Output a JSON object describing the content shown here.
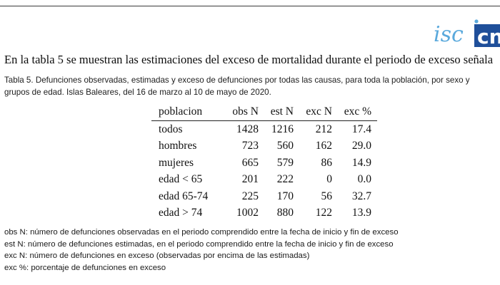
{
  "logo": {
    "text_a": "isc",
    "text_b": "cn",
    "colors": {
      "primary": "#1f4f9a",
      "light": "#5aa9dc"
    }
  },
  "intro_text": "En la tabla 5 se muestran las estimaciones del exceso de mortalidad durante el periodo de exceso señala",
  "caption": {
    "line1": "Tabla 5. Defunciones observadas, estimadas y exceso de defunciones por todas las causas, para toda la población, por sexo y",
    "line2": "grupos de edad. Islas Baleares, del 16 de marzo al 10 de mayo de 2020."
  },
  "table": {
    "headers": [
      "poblacion",
      "obs N",
      "est N",
      "exc N",
      "exc %"
    ],
    "rows": [
      [
        "todos",
        "1428",
        "1216",
        "212",
        "17.4"
      ],
      [
        "hombres",
        "723",
        "560",
        "162",
        "29.0"
      ],
      [
        "mujeres",
        "665",
        "579",
        "86",
        "14.9"
      ],
      [
        "edad < 65",
        "201",
        "222",
        "0",
        "0.0"
      ],
      [
        "edad 65-74",
        "225",
        "170",
        "56",
        "32.7"
      ],
      [
        "edad > 74",
        "1002",
        "880",
        "122",
        "13.9"
      ]
    ]
  },
  "notes": [
    "obs N: número de defunciones observadas en el periodo comprendido entre la fecha de inicio y fin de exceso",
    "est N: número de defunciones estimadas, en el periodo comprendido entre la fecha de inicio y fin de exceso",
    "exc N: número de defunciones en exceso (observadas por encima de las estimadas)",
    "exc %: porcentaje de defunciones en exceso"
  ]
}
